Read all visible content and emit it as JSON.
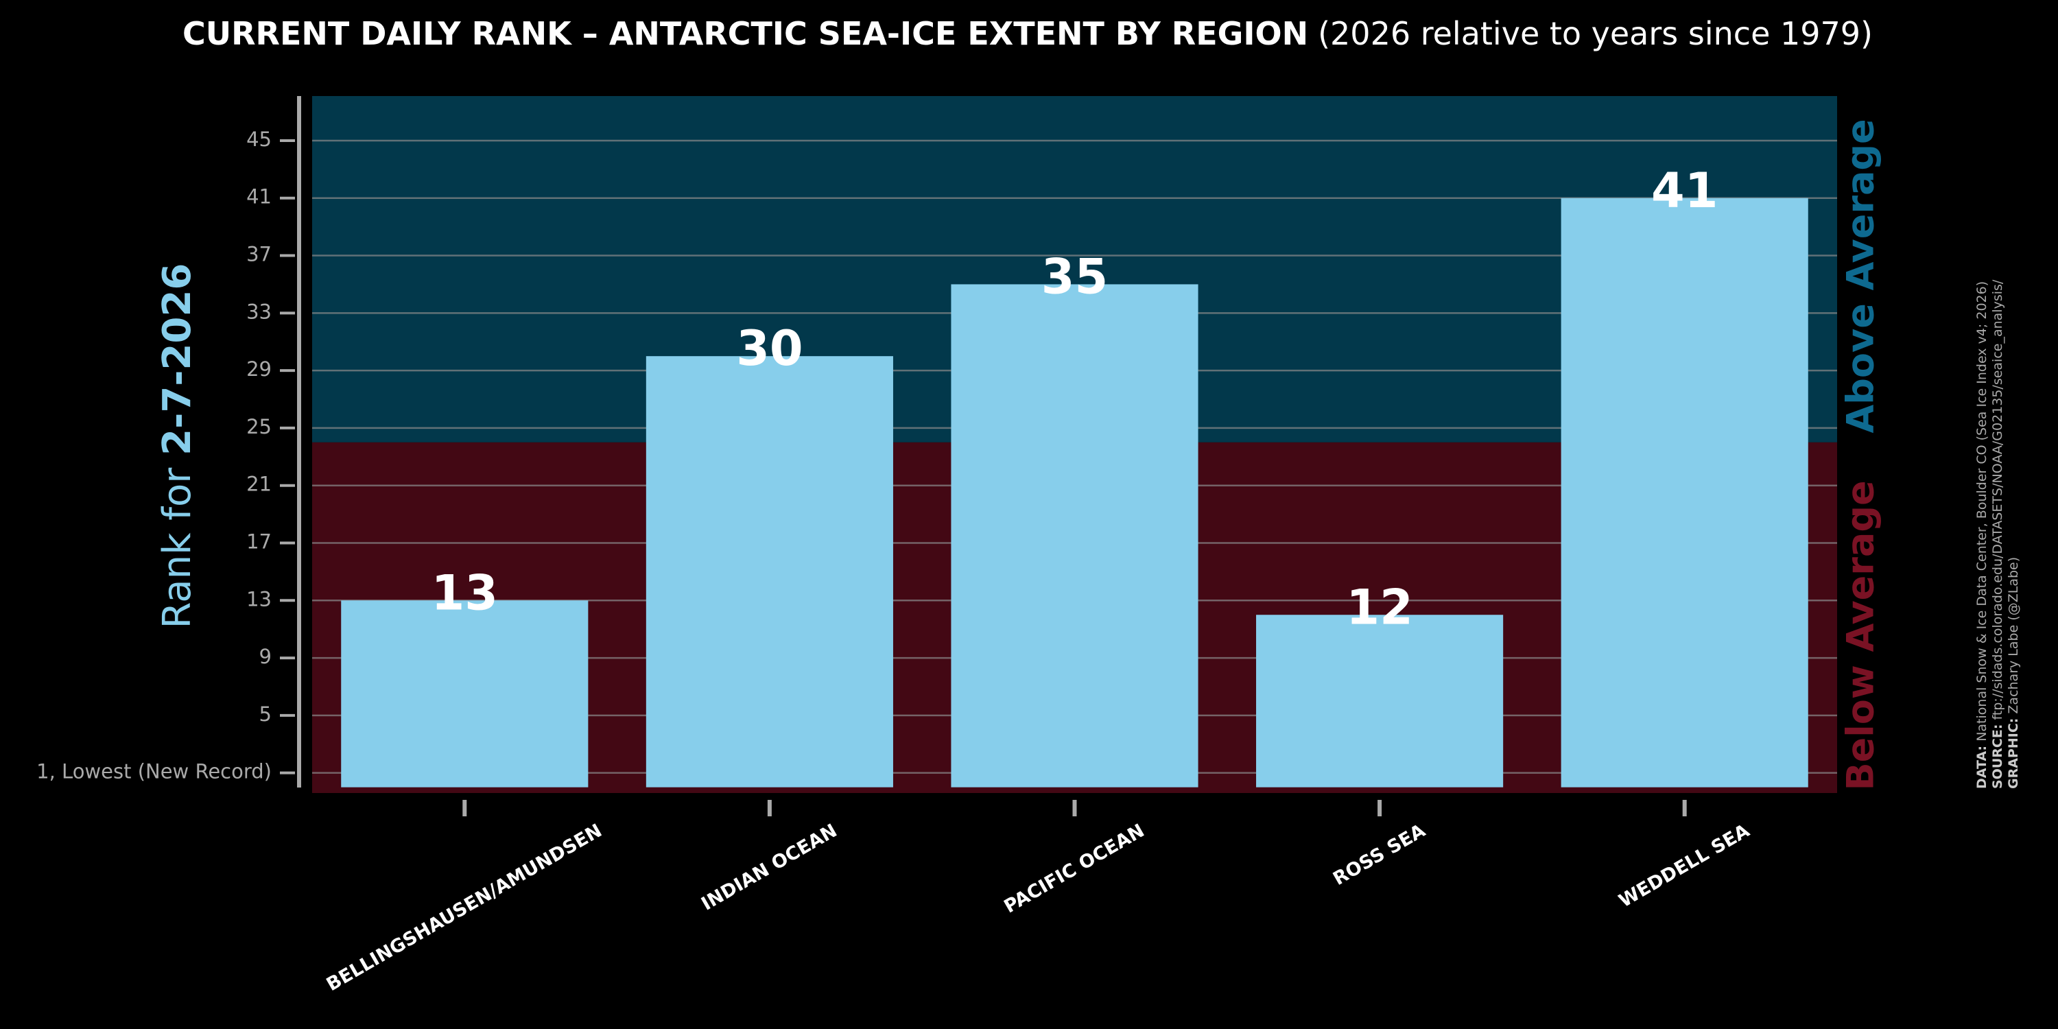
{
  "chart_data": {
    "type": "bar",
    "title": "CURRENT DAILY RANK – ANTARCTIC SEA-ICE EXTENT BY REGION",
    "subtitle": "(2026 relative to years since 1979)",
    "y_label": "Rank for ",
    "y_label_date": "2-7-2026",
    "upper_region_label": "Above Average",
    "lower_region_label": "Below Average",
    "average_rank": 24,
    "categories": [
      "BELLINGSHAUSEN/AMUNDSEN",
      "INDIAN OCEAN",
      "PACIFIC OCEAN",
      "ROSS SEA",
      "WEDDELL SEA"
    ],
    "values": [
      13,
      30,
      35,
      12,
      41
    ],
    "color": "#87ceeb",
    "upper_color": "#02384b",
    "lower_color": "#430814",
    "ylim": [
      -0.4,
      48.1
    ],
    "yticks": [
      {
        "value": 1,
        "label": "1, Lowest (New Record)"
      },
      5,
      9,
      13,
      17,
      21,
      25,
      29,
      33,
      37,
      41,
      45
    ],
    "grid": true,
    "credits": [
      {
        "label": "DATA:",
        "text": " National Snow & Ice Data Center, Boulder CO (Sea Ice Index v4; 2026)"
      },
      {
        "label": "SOURCE:",
        "text": " ftp://sidads.colorado.edu/DATASETS/NOAA/G02135/seaice_analysis/"
      },
      {
        "label": "GRAPHIC:",
        "text": " Zachary Labe (@ZLabe)"
      }
    ]
  }
}
